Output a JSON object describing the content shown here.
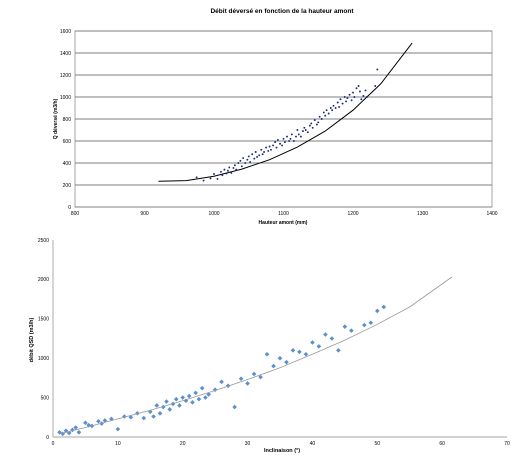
{
  "colors": {
    "background": "#ffffff",
    "grid": "#000000",
    "chart1_points": "#1f2a7a",
    "chart1_curve": "#000000",
    "chart2_points": "#5b8fcf",
    "chart2_curve": "#999999",
    "axis": "#888888"
  },
  "chart_data": [
    {
      "type": "scatter",
      "title": "Débit déversé en fonction de la hauteur amont",
      "xlabel": "Hauteur amont (mm)",
      "ylabel": "Q déversé (m3/h)",
      "xlim": [
        800,
        1400
      ],
      "ylim": [
        0,
        1600
      ],
      "x_ticks": [
        "800",
        "900",
        "1000",
        "1100",
        "1200",
        "1300",
        "1400"
      ],
      "y_ticks": [
        "0",
        "200",
        "400",
        "600",
        "800",
        "1000",
        "1200",
        "1400",
        "1600"
      ],
      "grid": "horizontal",
      "marker": "small-dot",
      "trendline": {
        "x": [
          920,
          960,
          1000,
          1040,
          1080,
          1120,
          1160,
          1200,
          1240,
          1285
        ],
        "y": [
          235,
          240,
          280,
          345,
          430,
          545,
          690,
          880,
          1120,
          1490
        ]
      },
      "series": [
        {
          "x": [
            975,
            985,
            995,
            1000,
            1005,
            1010,
            1012,
            1015,
            1018,
            1020,
            1022,
            1025,
            1028,
            1030,
            1032,
            1035,
            1038,
            1040,
            1042,
            1045,
            1048,
            1050,
            1052,
            1055,
            1058,
            1060,
            1062,
            1065,
            1068,
            1070,
            1072,
            1075,
            1078,
            1080,
            1082,
            1085,
            1088,
            1090,
            1092,
            1095,
            1098,
            1100,
            1102,
            1105,
            1108,
            1110,
            1112,
            1115,
            1118,
            1120,
            1122,
            1125,
            1128,
            1130,
            1132,
            1135,
            1138,
            1140,
            1142,
            1145,
            1148,
            1150,
            1152,
            1155,
            1158,
            1160,
            1162,
            1165,
            1168,
            1170,
            1172,
            1175,
            1178,
            1180,
            1182,
            1185,
            1188,
            1190,
            1192,
            1195,
            1198,
            1200,
            1202,
            1205,
            1208,
            1210,
            1212,
            1215,
            1218,
            1220,
            1232,
            1235
          ],
          "y": [
            270,
            240,
            260,
            300,
            255,
            320,
            290,
            340,
            305,
            330,
            360,
            310,
            355,
            380,
            340,
            400,
            420,
            370,
            445,
            400,
            430,
            460,
            410,
            480,
            440,
            500,
            455,
            470,
            520,
            480,
            500,
            540,
            510,
            550,
            520,
            560,
            590,
            540,
            610,
            575,
            560,
            620,
            590,
            640,
            600,
            620,
            660,
            600,
            640,
            700,
            660,
            640,
            690,
            720,
            700,
            680,
            740,
            760,
            720,
            790,
            750,
            770,
            820,
            800,
            860,
            830,
            880,
            850,
            900,
            880,
            920,
            900,
            950,
            910,
            980,
            940,
            1000,
            960,
            990,
            1020,
            970,
            1040,
            1000,
            1080,
            1100,
            1050,
            980,
            1010,
            1060,
            1000,
            1100,
            1250
          ]
        }
      ]
    },
    {
      "type": "scatter",
      "title": "",
      "xlabel": "Inclinaison (°)",
      "ylabel": "débit QSD (m3/h)",
      "xlim": [
        0,
        70
      ],
      "ylim": [
        0,
        2500
      ],
      "x_ticks": [
        "0",
        "10",
        "20",
        "30",
        "40",
        "50",
        "60",
        "70"
      ],
      "y_ticks": [
        "0",
        "500",
        "1000",
        "1500",
        "2000",
        "2500"
      ],
      "grid": "none",
      "marker": "diamond",
      "trendline": {
        "x": [
          1,
          5,
          10,
          15,
          20,
          25,
          30,
          35,
          40,
          45,
          50,
          55,
          61.5
        ],
        "y": [
          40,
          120,
          230,
          340,
          460,
          590,
          730,
          880,
          1050,
          1230,
          1430,
          1650,
          2030
        ]
      },
      "series": [
        {
          "x": [
            1,
            1.5,
            2,
            2.5,
            3,
            3.5,
            4,
            5,
            5.5,
            6,
            7,
            7.5,
            8,
            9,
            10,
            11,
            12,
            13,
            14,
            15,
            15.5,
            16,
            16.5,
            17,
            17.5,
            18,
            18.5,
            19,
            19.5,
            20,
            20.5,
            21,
            21.5,
            22,
            22.5,
            23,
            23.5,
            24,
            25,
            26,
            27,
            28,
            29,
            30,
            31,
            32,
            33,
            34,
            35,
            36,
            37,
            38,
            39,
            40,
            41,
            42,
            43,
            44,
            45,
            46,
            48,
            49,
            50,
            51
          ],
          "y": [
            60,
            40,
            80,
            50,
            90,
            120,
            60,
            180,
            150,
            140,
            200,
            170,
            210,
            230,
            100,
            260,
            250,
            300,
            240,
            320,
            260,
            400,
            300,
            380,
            450,
            350,
            420,
            480,
            400,
            500,
            460,
            520,
            440,
            560,
            480,
            620,
            500,
            540,
            600,
            700,
            650,
            380,
            740,
            680,
            800,
            760,
            1050,
            900,
            1000,
            950,
            1100,
            1080,
            1050,
            1200,
            1150,
            1300,
            1250,
            1100,
            1400,
            1350,
            1420,
            1450,
            1600,
            1650
          ]
        }
      ]
    }
  ]
}
